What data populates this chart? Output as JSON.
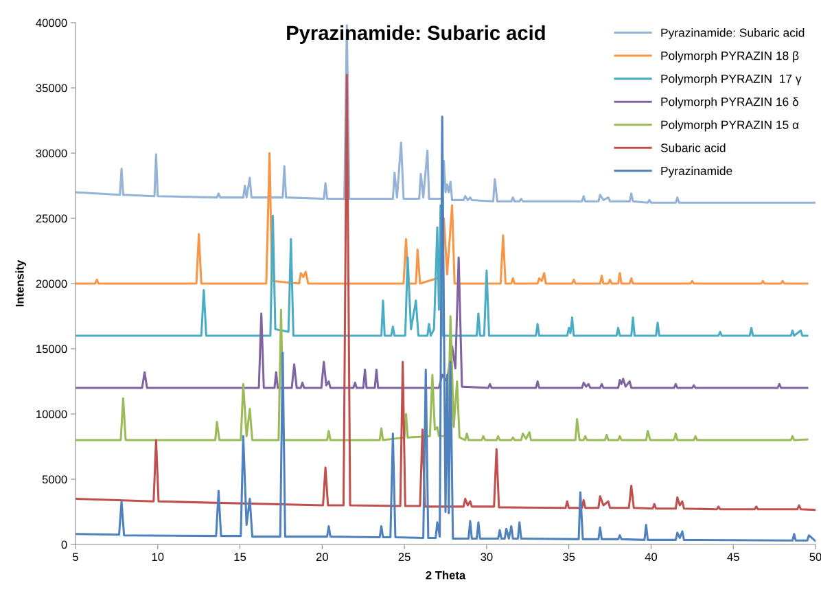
{
  "chart_data": {
    "type": "line",
    "title": "Pyrazinamide: Subaric acid",
    "xlabel": "2 Theta",
    "ylabel": "Intensity",
    "xlim": [
      5,
      50
    ],
    "ylim": [
      0,
      40000
    ],
    "xticks": [
      5,
      10,
      15,
      20,
      25,
      30,
      35,
      40,
      45,
      50
    ],
    "yticks": [
      0,
      5000,
      10000,
      15000,
      20000,
      25000,
      30000,
      35000,
      40000
    ],
    "grid": false,
    "legend": "top right",
    "marker": "none",
    "line_style": "solid",
    "series": [
      {
        "name": "Pyrazinamide: Subaric acid",
        "color": "#95b3d7",
        "x": [
          5,
          7.7,
          7.8,
          7.9,
          9.8,
          9.9,
          10.0,
          13.6,
          13.7,
          13.8,
          15.2,
          15.3,
          15.4,
          15.6,
          15.7,
          17.6,
          17.7,
          17.8,
          20.1,
          20.2,
          20.3,
          21.35,
          21.5,
          21.65,
          24.3,
          24.4,
          24.55,
          24.8,
          24.95,
          25.9,
          26.0,
          26.15,
          26.4,
          26.5,
          27.3,
          27.4,
          27.5,
          27.6,
          27.7,
          27.8,
          27.9,
          28.6,
          28.7,
          28.85,
          29.0,
          29.1,
          30.4,
          30.5,
          30.65,
          31.5,
          31.6,
          31.7,
          32.0,
          32.1,
          32.2,
          35.8,
          35.9,
          36.0,
          36.8,
          36.9,
          37.1,
          37.4,
          37.5,
          38.7,
          38.8,
          38.9,
          39.8,
          39.9,
          40.0,
          41.5,
          41.6,
          41.7,
          50
        ],
        "values": [
          27000,
          26800,
          28800,
          26800,
          26700,
          29900,
          26700,
          26600,
          26900,
          26600,
          26600,
          27500,
          26600,
          28100,
          26600,
          26600,
          29000,
          26600,
          26500,
          27700,
          26500,
          26500,
          39800,
          26500,
          26500,
          28500,
          26600,
          30800,
          26500,
          26500,
          28400,
          26600,
          30200,
          26500,
          26500,
          29400,
          27000,
          27600,
          27000,
          27800,
          26400,
          26400,
          26700,
          26400,
          26600,
          26400,
          26300,
          28000,
          26300,
          26300,
          26600,
          26300,
          26300,
          26500,
          26300,
          26300,
          26700,
          26300,
          26300,
          26800,
          26400,
          26600,
          26300,
          26300,
          26900,
          26300,
          26200,
          26400,
          26200,
          26200,
          26600,
          26200,
          26200
        ]
      },
      {
        "name": "Polymorph PYRAZIN 18 β",
        "color": "#f79646",
        "x": [
          5,
          6.2,
          6.3,
          6.4,
          12.35,
          12.5,
          12.65,
          16.6,
          16.8,
          16.95,
          18.6,
          18.7,
          18.85,
          19.0,
          19.15,
          24.95,
          25.1,
          25.25,
          25.7,
          25.8,
          25.95,
          27.25,
          27.4,
          27.6,
          27.9,
          28.05,
          30.85,
          31.0,
          31.15,
          31.5,
          31.6,
          31.7,
          33.1,
          33.2,
          33.35,
          33.5,
          33.6,
          35.2,
          35.3,
          35.4,
          36.9,
          37.0,
          37.1,
          37.4,
          37.5,
          37.6,
          38.0,
          38.1,
          38.2,
          38.7,
          38.8,
          38.9,
          42.4,
          42.5,
          42.6,
          46.7,
          46.8,
          46.9,
          47.9,
          48.0,
          48.1,
          49.5
        ],
        "values": [
          20000,
          20000,
          20300,
          20000,
          20000,
          23800,
          20000,
          20000,
          30000,
          20200,
          20000,
          20800,
          20500,
          20900,
          20000,
          20000,
          23400,
          20000,
          20000,
          22600,
          20000,
          20500,
          25000,
          20700,
          26000,
          20000,
          20000,
          23700,
          20000,
          20000,
          20400,
          20000,
          20000,
          20400,
          20200,
          20800,
          20000,
          20000,
          20300,
          20000,
          20000,
          20600,
          20000,
          20000,
          20300,
          20000,
          20000,
          20800,
          20000,
          20000,
          20400,
          20000,
          20000,
          20200,
          20000,
          20000,
          20200,
          20000,
          20000,
          20200,
          20000,
          20000
        ]
      },
      {
        "name": "Polymorph PYRAZIN  17 γ",
        "color": "#4bacc6",
        "x": [
          5,
          12.65,
          12.8,
          12.95,
          16.85,
          17.0,
          17.15,
          17.95,
          18.1,
          18.25,
          23.6,
          23.7,
          23.8,
          24.2,
          24.3,
          24.4,
          25.05,
          25.2,
          25.4,
          25.7,
          25.85,
          26.4,
          26.5,
          26.6,
          26.8,
          27.0,
          27.1,
          27.2,
          27.35,
          29.4,
          29.5,
          29.6,
          29.85,
          30.0,
          30.15,
          33.0,
          33.1,
          33.2,
          34.9,
          35.0,
          35.1,
          35.2,
          35.3,
          37.9,
          38.0,
          38.1,
          38.8,
          38.9,
          39.0,
          40.3,
          40.4,
          40.5,
          44.1,
          44.2,
          44.3,
          46.0,
          46.1,
          46.2,
          48.5,
          48.6,
          48.7,
          49.1,
          49.2,
          49.5
        ],
        "values": [
          16000,
          16000,
          19500,
          16000,
          16000,
          25200,
          16500,
          16300,
          23400,
          16000,
          16000,
          18700,
          16000,
          16000,
          16700,
          16000,
          16000,
          22000,
          16500,
          18700,
          16000,
          16000,
          16900,
          16000,
          16500,
          24300,
          18000,
          26000,
          16000,
          16000,
          17700,
          16000,
          16000,
          21000,
          16000,
          16000,
          16900,
          16000,
          16000,
          16600,
          16200,
          17400,
          16000,
          16000,
          16600,
          16000,
          16000,
          17400,
          16000,
          16000,
          17000,
          16000,
          16000,
          16300,
          16000,
          16000,
          16600,
          16000,
          16000,
          16400,
          16000,
          16400,
          16000,
          16000
        ]
      },
      {
        "name": "Polymorph PYRAZIN 16 δ",
        "color": "#8064a2",
        "x": [
          5,
          9.05,
          9.2,
          9.35,
          16.15,
          16.3,
          16.45,
          17.1,
          17.2,
          17.3,
          18.15,
          18.3,
          18.45,
          18.7,
          18.8,
          18.9,
          19.95,
          20.1,
          20.25,
          20.4,
          20.5,
          21.9,
          22.0,
          22.1,
          22.5,
          22.6,
          22.7,
          23.2,
          23.3,
          23.4,
          27.1,
          27.3,
          27.6,
          27.9,
          28.1,
          28.3,
          28.5,
          30.1,
          30.2,
          30.3,
          33.0,
          33.1,
          33.2,
          35.8,
          35.9,
          36.05,
          36.2,
          36.3,
          36.9,
          37.0,
          37.1,
          38.0,
          38.1,
          38.2,
          38.3,
          38.45,
          38.7,
          38.8,
          41.4,
          41.5,
          41.6,
          42.5,
          42.6,
          42.7,
          47.7,
          47.8,
          47.9,
          49.5
        ],
        "values": [
          12000,
          12000,
          13200,
          12000,
          12000,
          17700,
          12000,
          12000,
          13200,
          12000,
          12000,
          13800,
          12000,
          12000,
          12400,
          12000,
          12000,
          14000,
          12200,
          12500,
          12000,
          12000,
          12400,
          12000,
          12000,
          13400,
          12000,
          12000,
          13400,
          12000,
          12000,
          13000,
          12500,
          15200,
          13500,
          22000,
          12100,
          12000,
          12300,
          12000,
          12000,
          12500,
          12000,
          12000,
          12400,
          12100,
          12300,
          12000,
          12000,
          12300,
          12000,
          12000,
          12600,
          12300,
          12700,
          12100,
          12500,
          12000,
          12000,
          12300,
          12000,
          12000,
          12200,
          12000,
          12000,
          12300,
          12000,
          12000
        ]
      },
      {
        "name": "Polymorph PYRAZIN 15 α",
        "color": "#9bbb59",
        "x": [
          5,
          7.75,
          7.9,
          8.05,
          13.5,
          13.6,
          13.75,
          15.05,
          15.2,
          15.4,
          15.6,
          15.75,
          17.35,
          17.5,
          17.65,
          20.3,
          20.4,
          20.5,
          23.5,
          23.6,
          23.7,
          25.0,
          25.1,
          25.2,
          26.55,
          26.7,
          26.85,
          27.0,
          27.1,
          27.65,
          27.8,
          28.0,
          28.2,
          28.35,
          28.7,
          28.8,
          28.9,
          29.7,
          29.8,
          29.9,
          30.6,
          30.7,
          30.8,
          31.5,
          31.6,
          31.7,
          32.1,
          32.2,
          32.4,
          32.6,
          32.7,
          35.4,
          35.5,
          35.65,
          35.9,
          36.0,
          36.1,
          37.2,
          37.3,
          37.4,
          38.0,
          38.1,
          38.2,
          39.7,
          39.8,
          39.95,
          41.4,
          41.5,
          41.6,
          42.6,
          42.7,
          42.8,
          48.5,
          48.6,
          48.7,
          49.5
        ],
        "values": [
          8000,
          8000,
          11200,
          8000,
          8000,
          9400,
          8000,
          8000,
          12300,
          8300,
          10400,
          8000,
          8000,
          18000,
          8000,
          8000,
          8700,
          8000,
          8000,
          8900,
          8000,
          8200,
          10000,
          8200,
          8300,
          13000,
          8800,
          9000,
          8300,
          8300,
          17500,
          9000,
          12500,
          8200,
          8000,
          8500,
          8000,
          8000,
          8300,
          8000,
          8000,
          8300,
          8000,
          8000,
          8200,
          8000,
          8000,
          8500,
          8100,
          8600,
          8000,
          8000,
          9600,
          8000,
          8000,
          8300,
          8000,
          8000,
          8400,
          8000,
          8000,
          8300,
          8000,
          8000,
          8700,
          8000,
          8000,
          8500,
          8000,
          8000,
          8300,
          8000,
          8000,
          8300,
          8000,
          8050
        ]
      },
      {
        "name": "Subaric acid",
        "color": "#c0504d",
        "x": [
          5,
          9.75,
          9.9,
          10.05,
          20.05,
          20.2,
          20.35,
          21.3,
          21.5,
          21.7,
          24.75,
          24.9,
          25.05,
          25.95,
          26.1,
          26.25,
          28.6,
          28.7,
          28.85,
          29.0,
          29.1,
          30.45,
          30.6,
          30.75,
          34.8,
          34.9,
          35.0,
          35.8,
          35.9,
          36.0,
          36.8,
          36.9,
          37.1,
          37.4,
          37.5,
          38.65,
          38.8,
          38.95,
          40.1,
          40.2,
          40.3,
          41.5,
          41.6,
          41.75,
          41.9,
          42.0,
          44.0,
          44.1,
          44.2,
          46.3,
          46.4,
          46.5,
          48.9,
          49.0,
          49.1,
          50
        ],
        "values": [
          3500,
          3300,
          8000,
          3300,
          3000,
          5900,
          3000,
          3000,
          36000,
          3000,
          2950,
          14000,
          2950,
          2950,
          8800,
          2900,
          2900,
          3500,
          3000,
          3300,
          2900,
          2900,
          7300,
          2850,
          2800,
          3300,
          2800,
          2800,
          3400,
          2800,
          2800,
          3700,
          3000,
          3300,
          2800,
          2800,
          4500,
          2800,
          2750,
          3100,
          2750,
          2750,
          3600,
          3000,
          3300,
          2750,
          2700,
          2900,
          2700,
          2700,
          2900,
          2700,
          2700,
          3000,
          2700,
          2650
        ]
      },
      {
        "name": "Pyrazinamide",
        "color": "#4f81bd",
        "x": [
          5,
          7.65,
          7.8,
          7.95,
          13.55,
          13.7,
          13.85,
          15.05,
          15.2,
          15.4,
          15.6,
          15.75,
          17.45,
          17.6,
          17.75,
          20.3,
          20.4,
          20.5,
          23.5,
          23.6,
          23.7,
          24.15,
          24.3,
          24.45,
          26.15,
          26.3,
          26.45,
          26.9,
          27.0,
          27.15,
          27.3,
          27.5,
          27.6,
          27.7,
          27.8,
          27.95,
          28.9,
          29.0,
          29.1,
          29.4,
          29.5,
          29.6,
          30.7,
          30.8,
          30.9,
          31.1,
          31.2,
          31.35,
          31.5,
          31.6,
          31.9,
          32.0,
          32.1,
          35.6,
          35.7,
          35.85,
          36.8,
          36.9,
          37.0,
          38.0,
          38.1,
          38.2,
          39.6,
          39.7,
          39.8,
          41.5,
          41.6,
          41.75,
          41.9,
          42.0,
          48.6,
          48.7,
          48.8,
          49.5,
          49.6,
          50
        ],
        "values": [
          800,
          750,
          3300,
          700,
          650,
          4100,
          650,
          650,
          8300,
          1500,
          3500,
          600,
          600,
          14700,
          600,
          600,
          1400,
          600,
          550,
          1400,
          550,
          550,
          8500,
          550,
          500,
          13400,
          500,
          500,
          1700,
          600,
          32800,
          2500,
          13000,
          2400,
          14000,
          450,
          450,
          1800,
          450,
          450,
          1700,
          450,
          450,
          1100,
          450,
          450,
          1200,
          450,
          1400,
          450,
          450,
          1700,
          450,
          400,
          4000,
          400,
          400,
          1300,
          400,
          400,
          700,
          400,
          350,
          1500,
          350,
          350,
          900,
          500,
          1000,
          350,
          300,
          800,
          300,
          300,
          700,
          250
        ]
      }
    ]
  }
}
